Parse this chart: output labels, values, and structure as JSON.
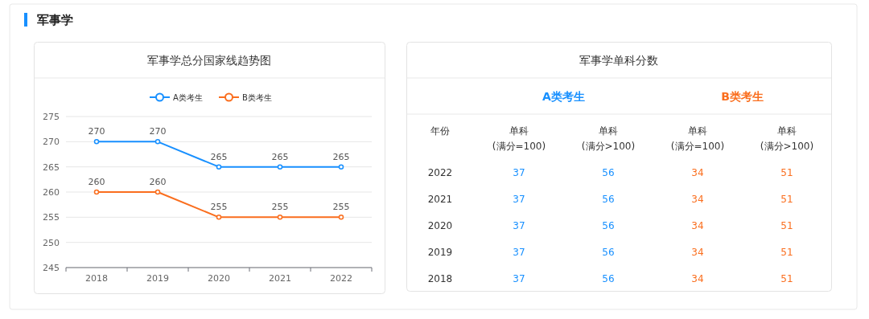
{
  "chart_data": [
    {
      "type": "line",
      "title": "军事学总分国家线趋势图",
      "annotations": [
        "军事学"
      ],
      "categories": [
        "2018",
        "2019",
        "2020",
        "2021",
        "2022"
      ],
      "series": [
        {
          "name": "A类考生",
          "color": "#1890ff",
          "values": [
            270,
            270,
            265,
            265,
            265
          ]
        },
        {
          "name": "B类考生",
          "color": "#fa6e1e",
          "values": [
            260,
            260,
            255,
            255,
            255
          ]
        }
      ],
      "ylim": [
        245,
        275
      ],
      "yticks": [
        245,
        250,
        255,
        260,
        265,
        270,
        275
      ],
      "grid": "y",
      "legend": "top",
      "marker": "circle",
      "data_labels": true
    },
    {
      "type": "heatmap",
      "title": "军事学单科分数",
      "ylabel": "年份",
      "data_labels": true,
      "annotations": [
        "A类考生",
        "B类考生"
      ],
      "colors": [
        "#1890ff",
        "#1890ff",
        "#fa6e1e",
        "#fa6e1e"
      ],
      "categories": [
        "单科\n(满分=100)",
        "单科\n(满分>100)",
        "单科\n(满分=100)",
        "单科\n(满分>100)"
      ],
      "y_categories": [
        "2022",
        "2021",
        "2020",
        "2019",
        "2018"
      ],
      "cells": [
        [
          37,
          56,
          34,
          51
        ],
        [
          37,
          56,
          34,
          51
        ],
        [
          37,
          56,
          34,
          51
        ],
        [
          37,
          56,
          34,
          51
        ],
        [
          37,
          56,
          34,
          51
        ]
      ]
    }
  ]
}
